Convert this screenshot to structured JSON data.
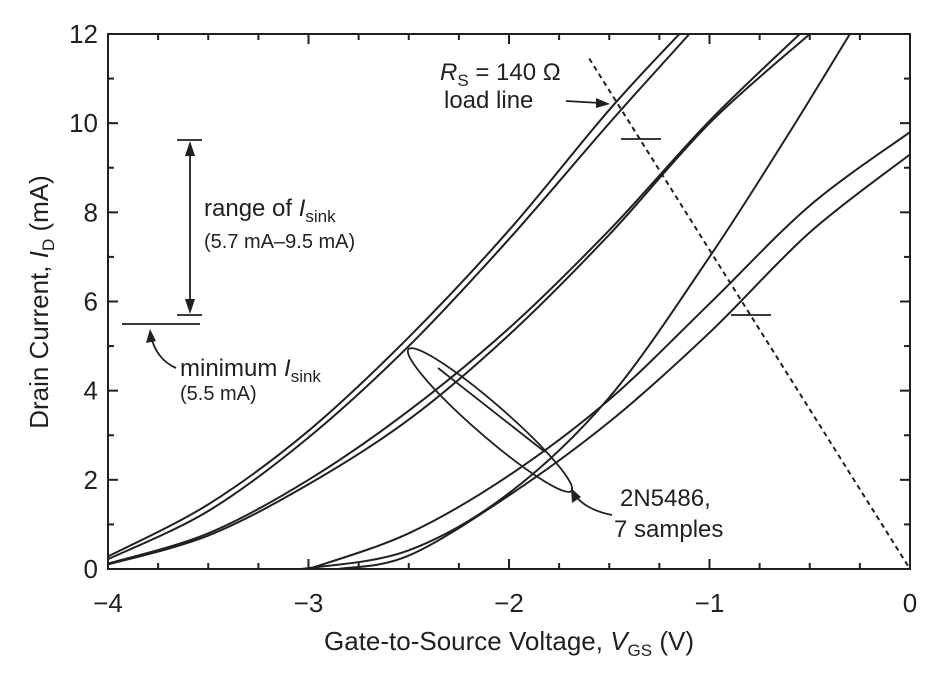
{
  "chart_data": {
    "type": "line",
    "xlabel": {
      "text": "Gate-to-Source Voltage, ",
      "var": "V",
      "sub": "GS",
      "unit": " (V)"
    },
    "ylabel": {
      "text": "Drain Current, ",
      "var": "I",
      "sub": "D",
      "unit": " (mA)"
    },
    "xlim": [
      -4,
      0
    ],
    "ylim": [
      0,
      12
    ],
    "x_ticks": [
      -4,
      -3,
      -2,
      -1,
      0
    ],
    "x_tick_labels": [
      "−4",
      "−3",
      "−2",
      "−1",
      "0"
    ],
    "y_ticks": [
      0,
      2,
      4,
      6,
      8,
      10,
      12
    ],
    "y_tick_labels": [
      "0",
      "2",
      "4",
      "6",
      "8",
      "10",
      "12"
    ],
    "grid": false,
    "series": [
      {
        "values": [
          [
            -4.0,
            0.28
          ],
          [
            -3.5,
            1.45
          ],
          [
            -3.0,
            3.1
          ],
          [
            -2.5,
            5.2
          ],
          [
            -2.0,
            7.6
          ],
          [
            -1.5,
            10.3
          ],
          [
            -1.15,
            12.0
          ]
        ]
      },
      {
        "values": [
          [
            -4.0,
            0.22
          ],
          [
            -3.5,
            1.3
          ],
          [
            -3.0,
            2.95
          ],
          [
            -2.5,
            5.0
          ],
          [
            -2.0,
            7.4
          ],
          [
            -1.5,
            10.0
          ],
          [
            -1.1,
            12.0
          ]
        ]
      },
      {
        "values": [
          [
            -4.0,
            0.12
          ],
          [
            -3.5,
            0.8
          ],
          [
            -3.0,
            2.0
          ],
          [
            -2.5,
            3.55
          ],
          [
            -2.0,
            5.4
          ],
          [
            -1.5,
            7.6
          ],
          [
            -1.0,
            10.05
          ],
          [
            -0.55,
            12.0
          ]
        ]
      },
      {
        "values": [
          [
            -4.0,
            0.1
          ],
          [
            -3.5,
            0.75
          ],
          [
            -3.0,
            1.9
          ],
          [
            -2.5,
            3.35
          ],
          [
            -2.0,
            5.25
          ],
          [
            -1.5,
            7.5
          ],
          [
            -1.0,
            10.0
          ],
          [
            -0.5,
            12.0
          ]
        ]
      },
      {
        "values": [
          [
            -3.15,
            0.0
          ],
          [
            -3.0,
            0.02
          ],
          [
            -2.5,
            0.42
          ],
          [
            -2.0,
            1.7
          ],
          [
            -1.5,
            3.85
          ],
          [
            -1.0,
            7.0
          ],
          [
            -0.6,
            9.8
          ],
          [
            -0.3,
            12.0
          ]
        ]
      },
      {
        "values": [
          [
            -3.0,
            0.0
          ],
          [
            -2.5,
            0.8
          ],
          [
            -2.0,
            2.1
          ],
          [
            -1.5,
            3.8
          ],
          [
            -1.0,
            5.95
          ],
          [
            -0.5,
            8.15
          ],
          [
            0.0,
            9.8
          ]
        ]
      },
      {
        "values": [
          [
            -2.85,
            0.0
          ],
          [
            -2.5,
            0.3
          ],
          [
            -2.0,
            1.65
          ],
          [
            -1.5,
            3.3
          ],
          [
            -1.0,
            5.3
          ],
          [
            -0.5,
            7.55
          ],
          [
            0.0,
            9.3
          ]
        ]
      }
    ],
    "load_line": {
      "label_var": "R",
      "label_sub": "S",
      "label_value": " = 140 Ω",
      "label_line2": "load line",
      "values": [
        [
          -1.6,
          11.45
        ],
        [
          0.0,
          0.0
        ]
      ]
    },
    "annotations": {
      "range_label_prefix": "range of ",
      "range_label_var": "I",
      "range_label_sub": "sink",
      "range_values": "(5.7 mA–9.5 mA)",
      "range_low": 5.7,
      "range_high": 9.5,
      "min_label_prefix": "minimum ",
      "min_label_var": "I",
      "min_label_sub": "sink",
      "min_value": "(5.5 mA)",
      "min_level": 5.5,
      "samples_label": "2N5486,",
      "samples_count": "7 samples"
    }
  }
}
